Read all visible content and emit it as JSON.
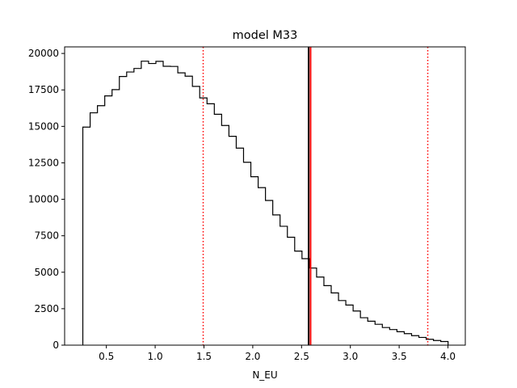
{
  "chart_data": {
    "type": "histogram",
    "title": "model M33",
    "xlabel": "N_EU",
    "ylabel": "",
    "xlim": [
      0.0723,
      4.1777
    ],
    "ylim": [
      0,
      20450
    ],
    "x_ticks": [
      0.5,
      1.0,
      1.5,
      2.0,
      2.5,
      3.0,
      3.5,
      4.0
    ],
    "x_tick_labels": [
      "0.5",
      "1.0",
      "1.5",
      "2.0",
      "2.5",
      "3.0",
      "3.5",
      "4.0"
    ],
    "y_ticks": [
      0,
      2500,
      5000,
      7500,
      10000,
      12500,
      15000,
      17500,
      20000
    ],
    "y_tick_labels": [
      "0",
      "2500",
      "5000",
      "7500",
      "10000",
      "12500",
      "15000",
      "17500",
      "20000"
    ],
    "bin_edges": [
      0.2589,
      0.3337,
      0.4086,
      0.4834,
      0.5583,
      0.6331,
      0.708,
      0.7828,
      0.8577,
      0.9325,
      1.0074,
      1.0822,
      1.1571,
      1.2319,
      1.3068,
      1.3816,
      1.4565,
      1.5313,
      1.6061,
      1.681,
      1.7558,
      1.8307,
      1.9055,
      1.9804,
      2.0552,
      2.1301,
      2.2049,
      2.2798,
      2.3546,
      2.4295,
      2.5043,
      2.5792,
      2.654,
      2.7289,
      2.8037,
      2.8786,
      2.9534,
      3.0283,
      3.1031,
      3.178,
      3.2528,
      3.3277,
      3.4025,
      3.4774,
      3.5522,
      3.6271,
      3.7019,
      3.7768,
      3.8516,
      3.9264,
      4.0013
    ],
    "counts": [
      14950,
      15930,
      16420,
      17090,
      17520,
      18420,
      18730,
      18970,
      19470,
      19310,
      19460,
      19120,
      19110,
      18670,
      18440,
      17740,
      16950,
      16550,
      15830,
      15060,
      14320,
      13510,
      12540,
      11550,
      10800,
      9920,
      8930,
      8150,
      7400,
      6450,
      5930,
      5290,
      4670,
      4080,
      3580,
      3060,
      2750,
      2340,
      1880,
      1640,
      1430,
      1210,
      1070,
      920,
      790,
      650,
      530,
      400,
      320,
      250
    ],
    "vertical_lines": [
      {
        "x": 1.492,
        "color": "#ff0000",
        "style": "dotted"
      },
      {
        "x": 2.572,
        "color": "#000000",
        "style": "solid"
      },
      {
        "x": 2.592,
        "color": "#ff0000",
        "style": "solid"
      },
      {
        "x": 3.793,
        "color": "#ff0000",
        "style": "dotted"
      }
    ],
    "histogram_color": "#000000",
    "grid": false,
    "legend": "none"
  }
}
